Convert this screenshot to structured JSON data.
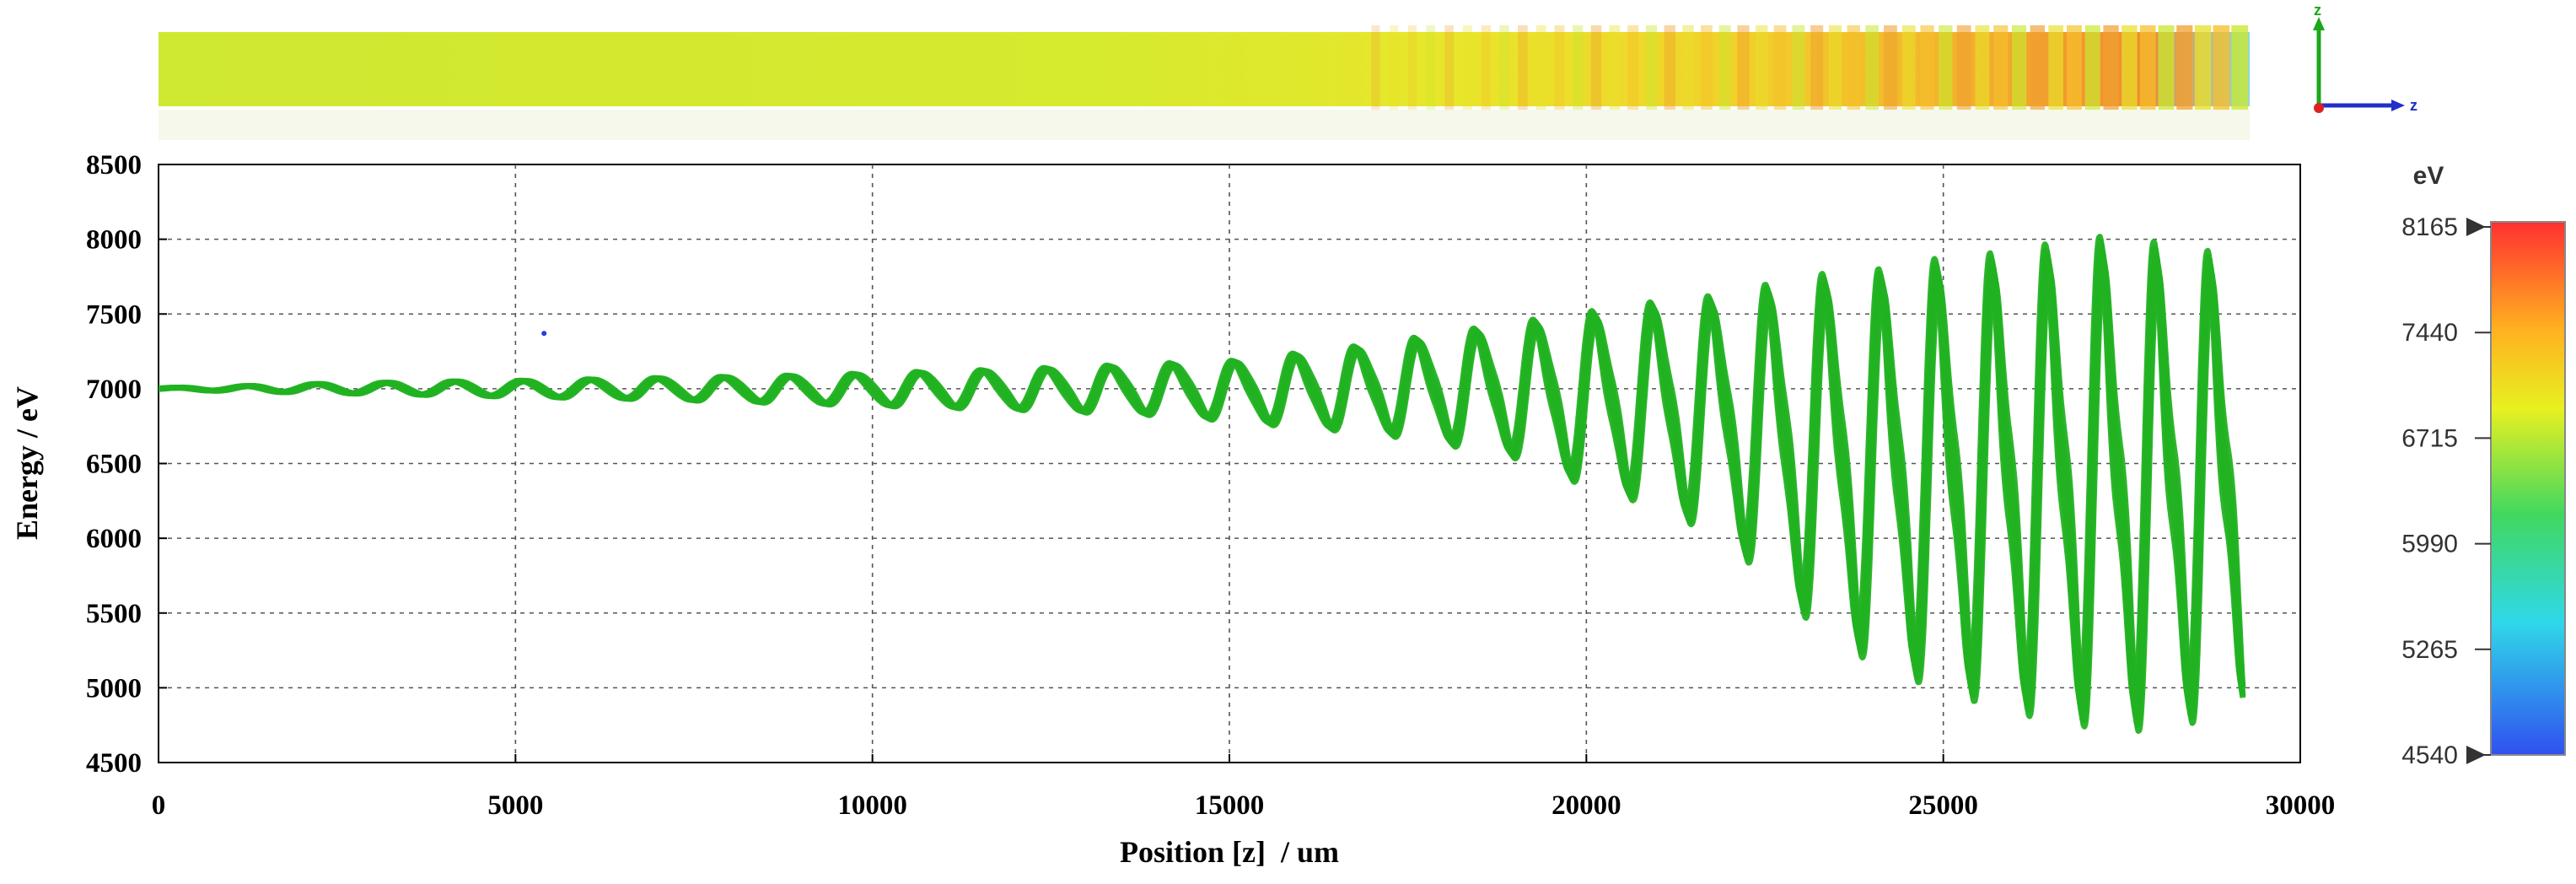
{
  "chart_data": {
    "type": "scatter",
    "title": "",
    "xlabel": "Position [z]  / um",
    "ylabel": "Energy / eV",
    "xlim": [
      0,
      30000
    ],
    "ylim": [
      4500,
      8500
    ],
    "x_ticks": [
      "0",
      "5000",
      "10000",
      "15000",
      "20000",
      "25000",
      "30000"
    ],
    "y_ticks": [
      "4500",
      "5000",
      "5500",
      "6000",
      "6500",
      "7000",
      "7500",
      "8000",
      "8500"
    ],
    "grid": true,
    "series": [
      {
        "color": "#22b222",
        "description_points": {
          "x": [
            0,
            1000,
            2000,
            3000,
            4000,
            5000,
            6000,
            7000,
            8000,
            9000,
            10000,
            11000,
            12000,
            13000,
            14000,
            15000,
            16000,
            17000,
            18000,
            19000,
            20000,
            21000,
            22000,
            23000,
            24000,
            25000,
            26000,
            27000,
            28000,
            29000
          ],
          "y_max": [
            7005,
            7015,
            7030,
            7040,
            7050,
            7055,
            7065,
            7075,
            7085,
            7095,
            7110,
            7125,
            7140,
            7160,
            7180,
            7200,
            7260,
            7320,
            7400,
            7480,
            7560,
            7640,
            7700,
            7850,
            7900,
            8000,
            8050,
            8165,
            8120,
            8030
          ],
          "y_min": [
            6995,
            6985,
            6975,
            6965,
            6955,
            6945,
            6935,
            6925,
            6910,
            6895,
            6880,
            6865,
            6850,
            6830,
            6810,
            6770,
            6720,
            6680,
            6600,
            6500,
            6300,
            6150,
            5900,
            5400,
            5050,
            4850,
            4700,
            4600,
            4560,
            4700
          ]
        }
      },
      {
        "color": "#1f3fe0",
        "outlier": {
          "x": 5400,
          "y": 7370
        }
      }
    ],
    "colorbar": {
      "unit": "eV",
      "labels": [
        "8165",
        "7440",
        "6715",
        "5990",
        "5265",
        "4540"
      ],
      "min": 4540,
      "max": 8165
    },
    "axis_triad": {
      "vertical": "z",
      "horizontal": "z"
    }
  }
}
